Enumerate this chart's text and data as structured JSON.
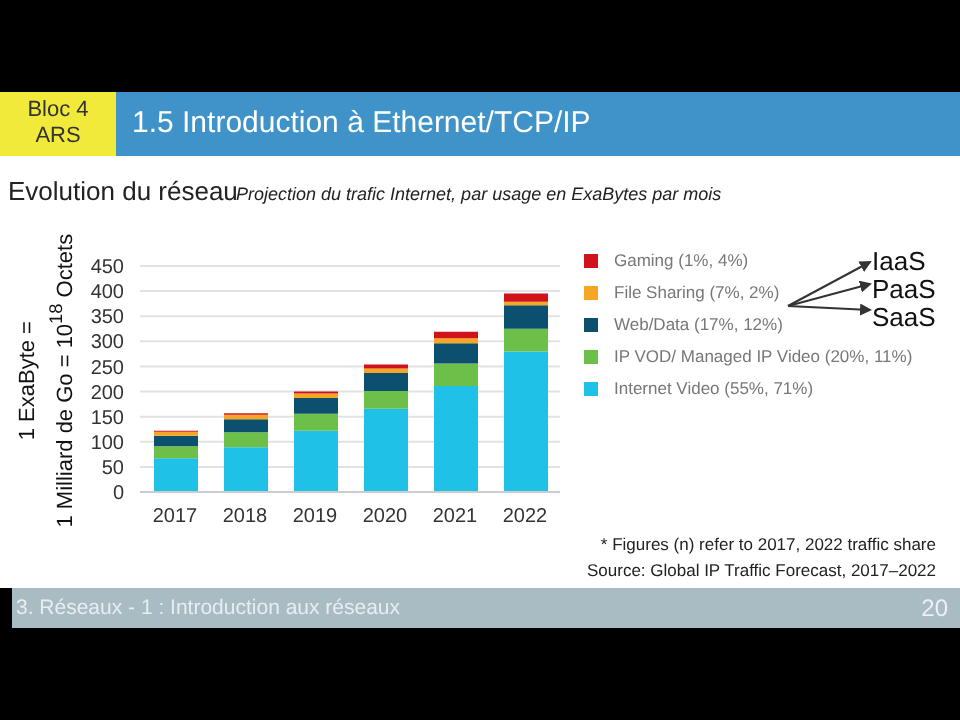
{
  "chart_data": {
    "type": "bar",
    "title": "Evolution du réseau",
    "subtitle": "Projection du trafic Internet, par usage en ExaBytes par mois",
    "ylabel": "1 ExaByte =\n1 Milliard de Go = 10$^{18}$ Octets",
    "categories": [
      "2017",
      "2018",
      "2019",
      "2020",
      "2021",
      "2022"
    ],
    "stacked": true,
    "series": [
      {
        "name": "Internet Video (55%, 71%)",
        "color": "#1fc1e6",
        "values": [
          67,
          89,
          122,
          166,
          211,
          280
        ]
      },
      {
        "name": "IP VOD/ Managed IP Video (20%, 11%)",
        "color": "#6cc04a",
        "values": [
          24,
          30,
          34,
          35,
          45,
          45
        ]
      },
      {
        "name": "Web/Data (17%, 12%)",
        "color": "#0d4f6e",
        "values": [
          21,
          26,
          31,
          36,
          40,
          47
        ]
      },
      {
        "name": "File Sharing (7%, 2%)",
        "color": "#f5a623",
        "values": [
          8,
          9,
          9,
          9,
          10,
          7
        ]
      },
      {
        "name": "Gaming (1%, 4%)",
        "color": "#d0121b",
        "values": [
          2,
          3,
          4,
          8,
          13,
          16
        ]
      }
    ],
    "ylim": [
      0,
      450
    ],
    "yticks": [
      0,
      50,
      100,
      150,
      200,
      250,
      300,
      350,
      400,
      450
    ],
    "grid": "y",
    "legend": "right",
    "annotations": [
      "Bloc 4\nARS",
      "1.5 Introduction à Ethernet/TCP/IP",
      "IaaS",
      "PaaS",
      "SaaS",
      "* Figures (n) refer to 2017, 2022 traffic share",
      "Source: Global IP Traffic Forecast, 2017–2022",
      "3. Réseaux - 1 : Introduction aux réseaux",
      "20"
    ]
  }
}
